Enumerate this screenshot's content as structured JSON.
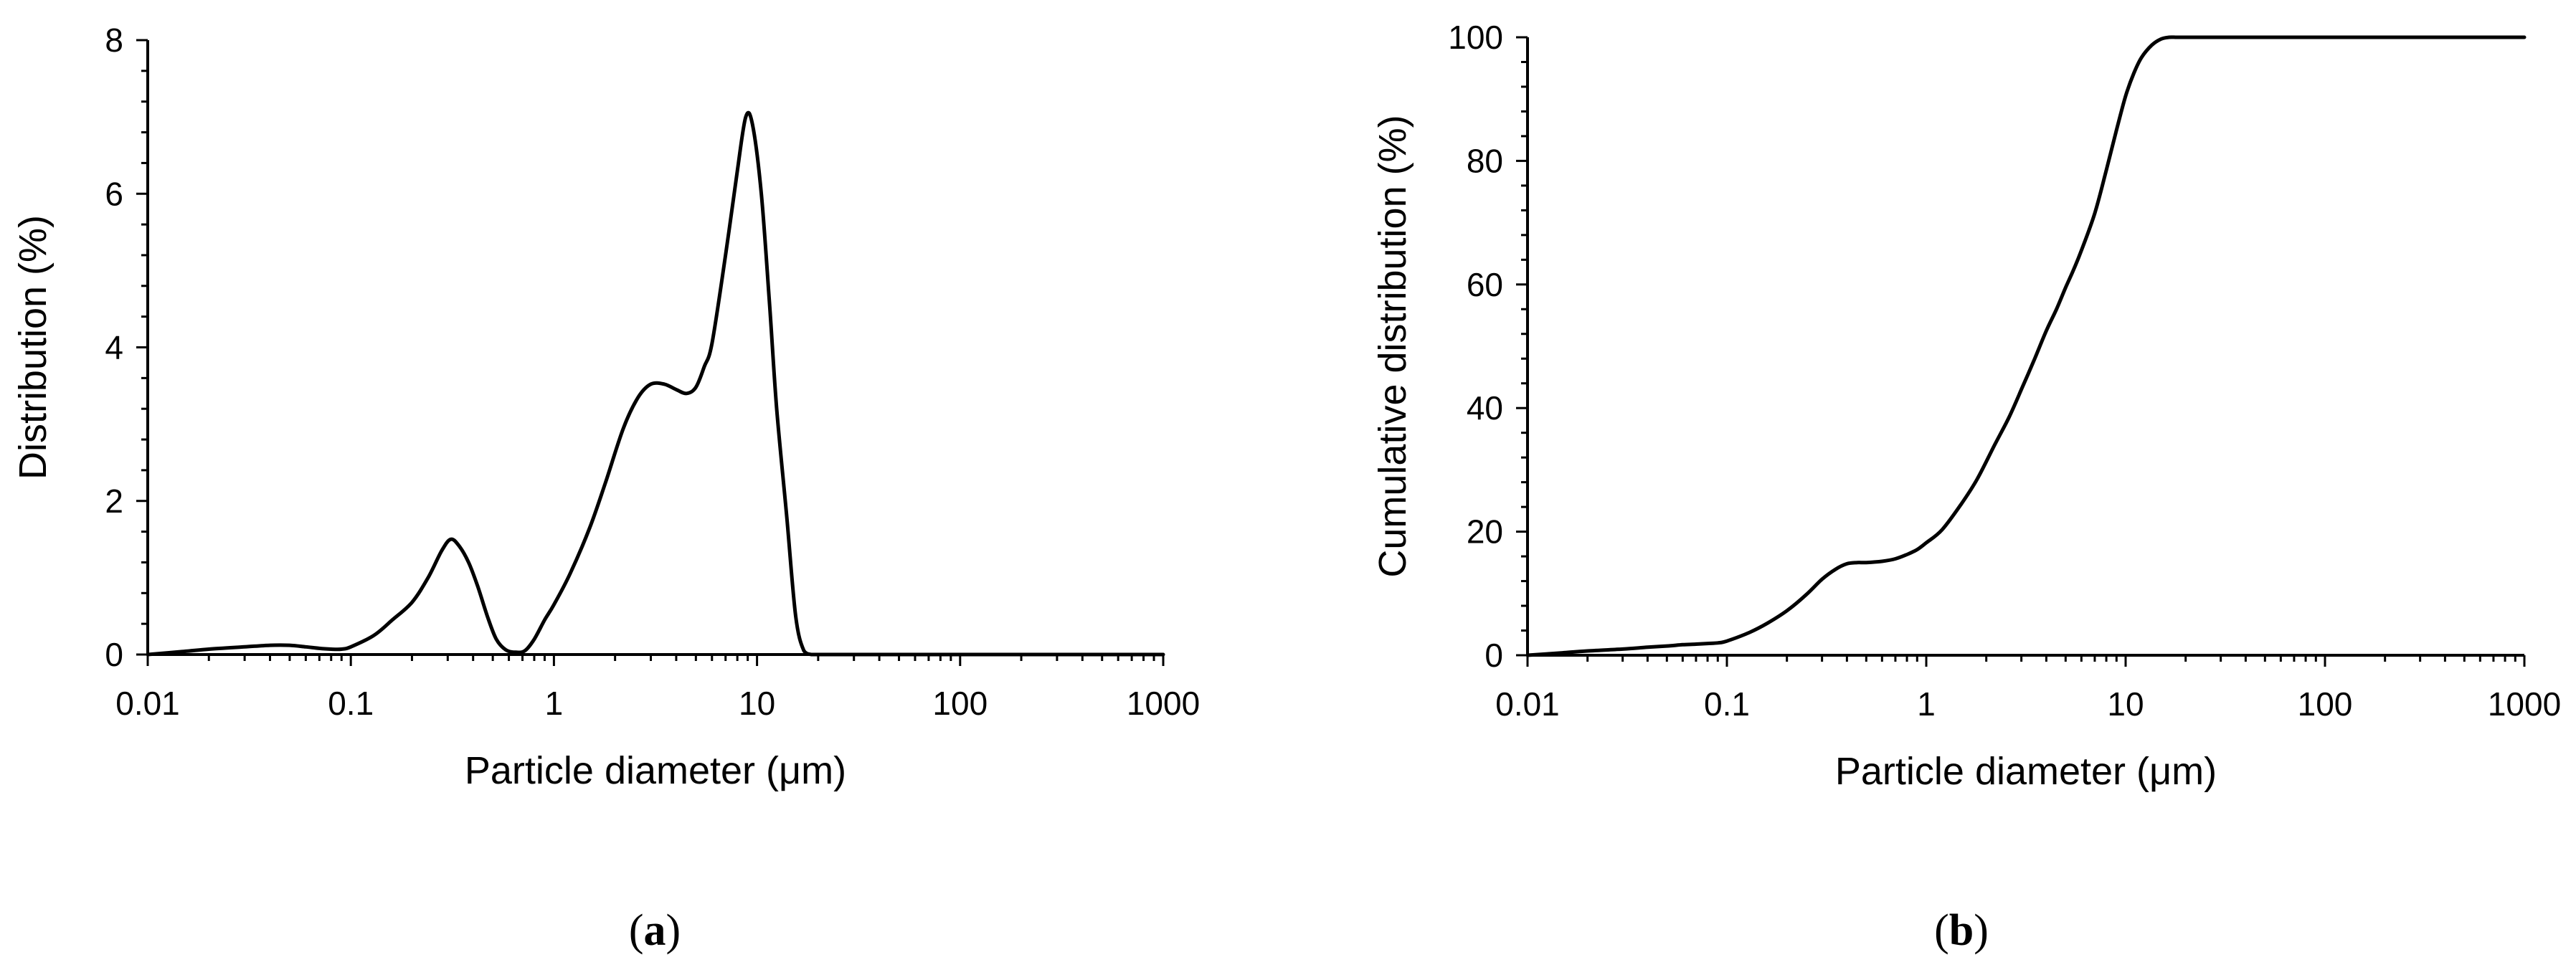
{
  "chart_data": [
    {
      "type": "line",
      "panel_label": "a",
      "xlabel": "Particle diameter (μm)",
      "ylabel": "Distribution (%)",
      "xscale": "log",
      "xlim": [
        0.01,
        1000
      ],
      "ylim": [
        0,
        8
      ],
      "xticks": [
        0.01,
        0.1,
        1,
        10,
        100,
        1000
      ],
      "xtick_labels": [
        "0.01",
        "0.1",
        "1",
        "10",
        "100",
        "1000"
      ],
      "yticks": [
        0,
        2,
        4,
        6,
        8
      ],
      "ytick_labels": [
        "0",
        "2",
        "4",
        "6",
        "8"
      ],
      "grid": false,
      "series": [
        {
          "color": "#000000",
          "x": [
            0.01,
            0.015,
            0.02,
            0.03,
            0.04,
            0.05,
            0.06,
            0.07,
            0.08,
            0.09,
            0.1,
            0.13,
            0.16,
            0.2,
            0.24,
            0.28,
            0.31,
            0.34,
            0.38,
            0.42,
            0.47,
            0.52,
            0.58,
            0.65,
            0.72,
            0.8,
            0.9,
            1.0,
            1.2,
            1.5,
            1.8,
            2.2,
            2.6,
            3.0,
            3.5,
            4.0,
            4.5,
            5.0,
            5.5,
            6.0,
            7.0,
            8.0,
            8.8,
            9.5,
            10.5,
            11.5,
            12.5,
            14.0,
            15.5,
            17.0,
            18.5,
            20,
            30,
            50,
            100,
            200,
            500,
            1000
          ],
          "y": [
            0,
            0.04,
            0.07,
            0.1,
            0.12,
            0.12,
            0.1,
            0.08,
            0.07,
            0.07,
            0.1,
            0.25,
            0.45,
            0.68,
            1.0,
            1.35,
            1.5,
            1.42,
            1.2,
            0.9,
            0.5,
            0.2,
            0.06,
            0.03,
            0.05,
            0.2,
            0.45,
            0.65,
            1.05,
            1.65,
            2.25,
            2.95,
            3.35,
            3.52,
            3.52,
            3.45,
            3.4,
            3.48,
            3.75,
            4.05,
            5.2,
            6.3,
            7.0,
            6.9,
            6.0,
            4.6,
            3.2,
            1.8,
            0.5,
            0.05,
            0,
            0,
            0,
            0,
            0,
            0,
            0,
            0
          ]
        }
      ]
    },
    {
      "type": "line",
      "panel_label": "b",
      "xlabel": "Particle diameter (μm)",
      "ylabel": "Cumulative distribution (%)",
      "xscale": "log",
      "xlim": [
        0.01,
        1000
      ],
      "ylim": [
        0,
        100
      ],
      "xticks": [
        0.01,
        0.1,
        1,
        10,
        100,
        1000
      ],
      "xtick_labels": [
        "0.01",
        "0.1",
        "1",
        "10",
        "100",
        "1000"
      ],
      "yticks": [
        0,
        20,
        40,
        60,
        80,
        100
      ],
      "ytick_labels": [
        "0",
        "20",
        "40",
        "60",
        "80",
        "100"
      ],
      "grid": false,
      "series": [
        {
          "color": "#000000",
          "x": [
            0.01,
            0.015,
            0.02,
            0.03,
            0.04,
            0.05,
            0.06,
            0.07,
            0.08,
            0.09,
            0.1,
            0.13,
            0.16,
            0.2,
            0.25,
            0.3,
            0.35,
            0.4,
            0.45,
            0.5,
            0.6,
            0.7,
            0.8,
            0.9,
            1.0,
            1.2,
            1.5,
            1.8,
            2.2,
            2.6,
            3.0,
            3.5,
            4.0,
            4.5,
            5.0,
            5.5,
            6.0,
            7.0,
            8.0,
            9.0,
            10.0,
            11.0,
            12.0,
            13.5,
            15.0,
            16.5,
            18.0,
            20,
            30,
            50,
            100,
            200,
            500,
            1000
          ],
          "y": [
            0,
            0.4,
            0.7,
            1.0,
            1.3,
            1.5,
            1.7,
            1.8,
            1.9,
            2.0,
            2.3,
            3.7,
            5.2,
            7.2,
            9.8,
            12.3,
            13.9,
            14.8,
            15.0,
            15.0,
            15.2,
            15.6,
            16.3,
            17.1,
            18.2,
            20.3,
            24.5,
            28.5,
            34.0,
            38.5,
            43.0,
            48.0,
            52.5,
            56.0,
            59.5,
            62.5,
            65.5,
            71.5,
            78.5,
            85.0,
            90.5,
            94.2,
            96.7,
            98.7,
            99.7,
            100,
            100,
            100,
            100,
            100,
            100,
            100,
            100,
            100
          ]
        }
      ]
    }
  ]
}
